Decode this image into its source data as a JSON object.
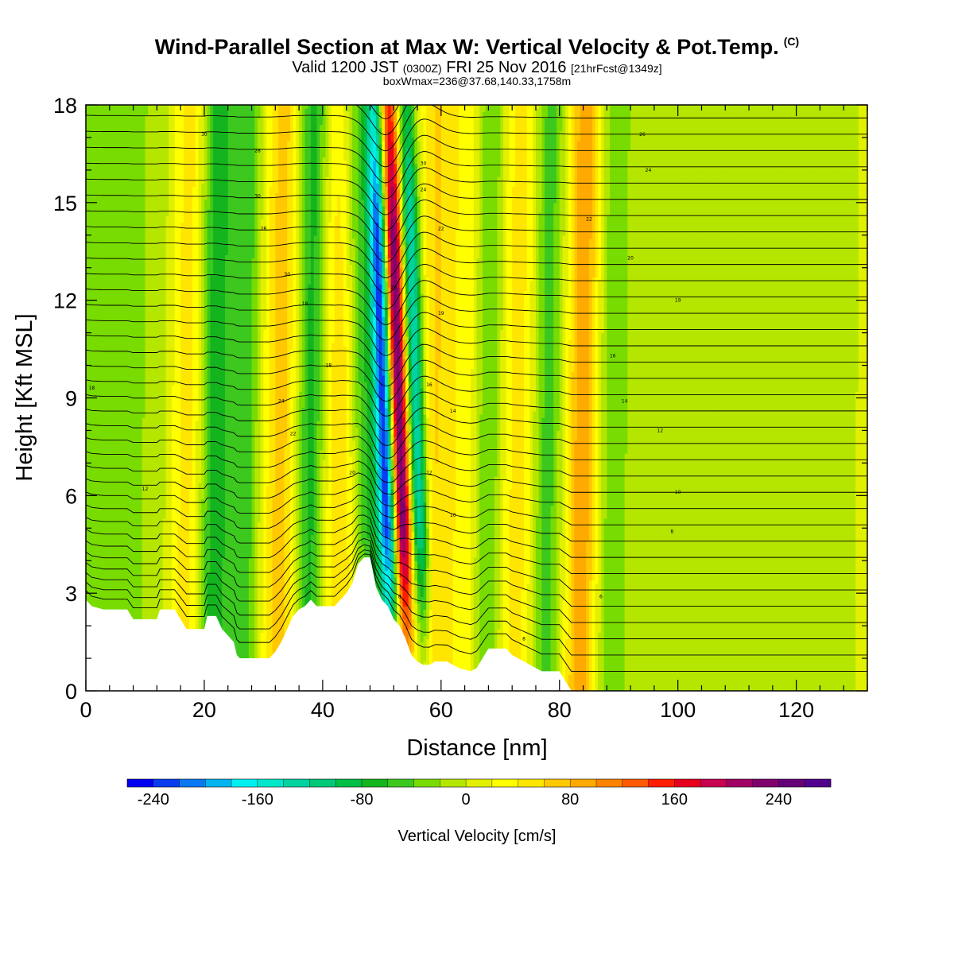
{
  "header": {
    "title": "Wind-Parallel Section at Max W: Vertical Velocity & Pot.Temp.",
    "title_mark": "(C)",
    "valid_a": "Valid 1200 JST",
    "valid_b": "(0300Z)",
    "valid_c": "FRI 25 Nov 2016",
    "valid_d": "[21hrFcst@1349z]",
    "box_line": "boxWmax=236@37.68,140.33,1758m"
  },
  "chart_data": {
    "type": "heatmap",
    "xlabel": "Distance [nm]",
    "ylabel": "Height [Kft MSL]",
    "xlim": [
      0,
      132
    ],
    "ylim": [
      0,
      18
    ],
    "x_ticks": [
      "0",
      "20",
      "40",
      "60",
      "80",
      "100",
      "120"
    ],
    "y_ticks": [
      "0",
      "3",
      "6",
      "9",
      "12",
      "15",
      "18"
    ],
    "colorbar": {
      "label": "Vertical Velocity [cm/s]",
      "tick_labels": [
        "-240",
        "-160",
        "-80",
        "0",
        "80",
        "160",
        "240"
      ],
      "range": [
        -260,
        280
      ],
      "step": 20,
      "colors": [
        "#0000f0",
        "#0a3cf0",
        "#0a78f0",
        "#00b4f0",
        "#00f0f0",
        "#00e6c8",
        "#00d2a0",
        "#00c878",
        "#00be46",
        "#14b41e",
        "#3cc81e",
        "#78dc00",
        "#b4e600",
        "#e1f000",
        "#ffff00",
        "#ffe600",
        "#ffc800",
        "#ffaa00",
        "#ff8200",
        "#ff5a00",
        "#ff1e00",
        "#e6001e",
        "#c80050",
        "#a00064",
        "#80006e",
        "#640078",
        "#50008c"
      ]
    },
    "background_w": 10,
    "w_features": [
      {
        "x": 4,
        "w": 15,
        "amp": -35
      },
      {
        "x": 17,
        "w": 3,
        "amp": 55
      },
      {
        "x": 22,
        "w": 2.5,
        "amp": -80
      },
      {
        "x": 27,
        "w": 2.5,
        "amp": -60
      },
      {
        "x": 33,
        "w": 3,
        "amp": 60
      },
      {
        "x": 38,
        "w": 2.5,
        "amp": -80
      },
      {
        "x": 43,
        "w": 3,
        "amp": 50
      },
      {
        "x": 47,
        "w": 2.5,
        "amp": -70
      },
      {
        "x": 50.3,
        "w": 1.6,
        "amp": -250
      },
      {
        "x": 52.7,
        "w": 1.6,
        "amp": 250
      },
      {
        "x": 55.7,
        "w": 1.5,
        "amp": -160
      },
      {
        "x": 59,
        "w": 2.5,
        "amp": 50
      },
      {
        "x": 64,
        "w": 3,
        "amp": 30
      },
      {
        "x": 68,
        "w": 2.5,
        "amp": -55
      },
      {
        "x": 73,
        "w": 3,
        "amp": 40
      },
      {
        "x": 78,
        "w": 2.5,
        "amp": -60
      },
      {
        "x": 84,
        "w": 2.5,
        "amp": 90
      },
      {
        "x": 89,
        "w": 3,
        "amp": -40
      },
      {
        "x": 97,
        "w": 6,
        "amp": -20
      },
      {
        "x": 112,
        "w": 8,
        "amp": -25
      },
      {
        "x": 127,
        "w": 5,
        "amp": -15
      }
    ],
    "terrain": [
      [
        0,
        2.8
      ],
      [
        1,
        2.6
      ],
      [
        3,
        2.5
      ],
      [
        7,
        2.5
      ],
      [
        8,
        2.2
      ],
      [
        12,
        2.2
      ],
      [
        12.5,
        2.5
      ],
      [
        15,
        2.5
      ],
      [
        16,
        2.2
      ],
      [
        17,
        1.9
      ],
      [
        20,
        1.9
      ],
      [
        20.5,
        2.3
      ],
      [
        22,
        2.3
      ],
      [
        23,
        1.9
      ],
      [
        25,
        1.5
      ],
      [
        25.5,
        1.1
      ],
      [
        26,
        1.0
      ],
      [
        31,
        1.0
      ],
      [
        32,
        1.2
      ],
      [
        33,
        1.5
      ],
      [
        34,
        1.9
      ],
      [
        35,
        2.3
      ],
      [
        36,
        2.5
      ],
      [
        37,
        2.6
      ],
      [
        38,
        2.8
      ],
      [
        39,
        2.6
      ],
      [
        42,
        2.6
      ],
      [
        43,
        2.8
      ],
      [
        44,
        3.0
      ],
      [
        45,
        3.3
      ],
      [
        46,
        3.9
      ],
      [
        47,
        4.1
      ],
      [
        48,
        4.1
      ],
      [
        49,
        3.2
      ],
      [
        50,
        2.8
      ],
      [
        51,
        2.6
      ],
      [
        52,
        2.2
      ],
      [
        53,
        2.0
      ],
      [
        54,
        1.6
      ],
      [
        55,
        1.1
      ],
      [
        56,
        0.9
      ],
      [
        57,
        0.8
      ],
      [
        58,
        0.8
      ],
      [
        59,
        0.9
      ],
      [
        61,
        0.9
      ],
      [
        62,
        0.8
      ],
      [
        63,
        0.7
      ],
      [
        65,
        0.6
      ],
      [
        66,
        0.7
      ],
      [
        67,
        1.0
      ],
      [
        68,
        1.3
      ],
      [
        71,
        1.3
      ],
      [
        72,
        1.1
      ],
      [
        73,
        1.0
      ],
      [
        74,
        0.9
      ],
      [
        76,
        0.7
      ],
      [
        77,
        0.6
      ],
      [
        80,
        0.6
      ],
      [
        81,
        0.3
      ],
      [
        82,
        0
      ],
      [
        132,
        0
      ]
    ],
    "theta_contours": {
      "min": 4,
      "max": 40,
      "step": 1,
      "labels": [
        {
          "x": 1,
          "y": 9.3,
          "t": "18"
        },
        {
          "x": 10,
          "y": 6.2,
          "t": "12"
        },
        {
          "x": 20,
          "y": 17.1,
          "t": "30"
        },
        {
          "x": 29,
          "y": 16.6,
          "t": "28"
        },
        {
          "x": 29,
          "y": 15.2,
          "t": "30"
        },
        {
          "x": 30,
          "y": 14.2,
          "t": "28"
        },
        {
          "x": 34,
          "y": 12.8,
          "t": "30"
        },
        {
          "x": 37,
          "y": 11.9,
          "t": "18"
        },
        {
          "x": 41,
          "y": 10.0,
          "t": "18"
        },
        {
          "x": 33,
          "y": 8.9,
          "t": "24"
        },
        {
          "x": 35,
          "y": 7.9,
          "t": "22"
        },
        {
          "x": 45,
          "y": 6.7,
          "t": "20"
        },
        {
          "x": 52,
          "y": 12.4,
          "t": "26"
        },
        {
          "x": 57,
          "y": 16.2,
          "t": "30"
        },
        {
          "x": 57,
          "y": 15.4,
          "t": "24"
        },
        {
          "x": 60,
          "y": 14.2,
          "t": "22"
        },
        {
          "x": 60,
          "y": 11.6,
          "t": "19"
        },
        {
          "x": 58,
          "y": 9.4,
          "t": "16"
        },
        {
          "x": 62,
          "y": 8.6,
          "t": "14"
        },
        {
          "x": 58,
          "y": 6.7,
          "t": "12"
        },
        {
          "x": 62,
          "y": 5.4,
          "t": "10"
        },
        {
          "x": 53,
          "y": 2.9,
          "t": "8"
        },
        {
          "x": 74,
          "y": 1.6,
          "t": "8"
        },
        {
          "x": 94,
          "y": 17.1,
          "t": "26"
        },
        {
          "x": 95,
          "y": 16.0,
          "t": "24"
        },
        {
          "x": 85,
          "y": 14.5,
          "t": "22"
        },
        {
          "x": 92,
          "y": 13.3,
          "t": "20"
        },
        {
          "x": 100,
          "y": 12.0,
          "t": "19"
        },
        {
          "x": 89,
          "y": 10.3,
          "t": "16"
        },
        {
          "x": 91,
          "y": 8.9,
          "t": "14"
        },
        {
          "x": 97,
          "y": 8.0,
          "t": "12"
        },
        {
          "x": 100,
          "y": 6.1,
          "t": "10"
        },
        {
          "x": 99,
          "y": 4.9,
          "t": "8"
        },
        {
          "x": 87,
          "y": 2.9,
          "t": "6"
        }
      ]
    }
  }
}
